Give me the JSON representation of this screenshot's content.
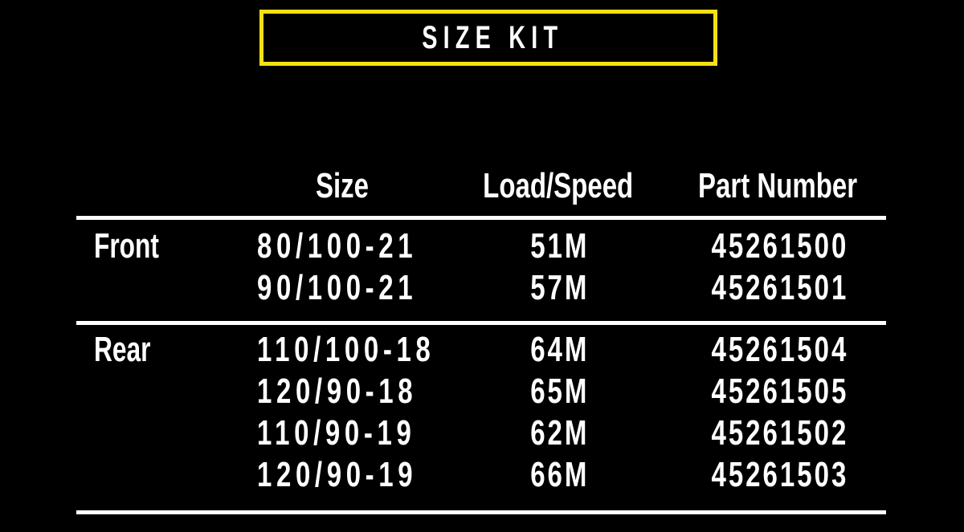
{
  "title": "SIZE KIT",
  "colors": {
    "background": "#000000",
    "title_border_yellow": "#F5E014",
    "text": "#FFFFFF",
    "rule_lines": "#FFFFFF"
  },
  "table": {
    "headers": {
      "size": "Size",
      "load_speed": "Load/Speed",
      "part_number": "Part Number"
    },
    "groups": [
      {
        "label": "Front",
        "rows": [
          {
            "size": "80/100-21",
            "load_speed": "51M",
            "part_number": "45261500"
          },
          {
            "size": "90/100-21",
            "load_speed": "57M",
            "part_number": "45261501"
          }
        ]
      },
      {
        "label": "Rear",
        "rows": [
          {
            "size": "110/100-18",
            "load_speed": "64M",
            "part_number": "45261504"
          },
          {
            "size": "120/90-18",
            "load_speed": "65M",
            "part_number": "45261505"
          },
          {
            "size": "110/90-19",
            "load_speed": "62M",
            "part_number": "45261502"
          },
          {
            "size": "120/90-19",
            "load_speed": "66M",
            "part_number": "45261503"
          }
        ]
      }
    ]
  }
}
